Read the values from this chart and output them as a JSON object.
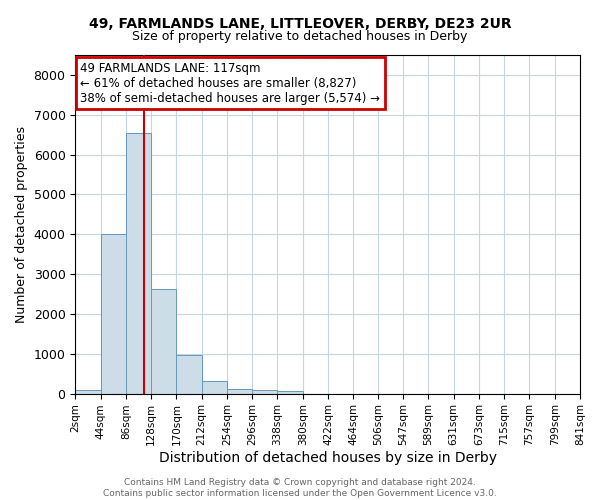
{
  "title_line1": "49, FARMLANDS LANE, LITTLEOVER, DERBY, DE23 2UR",
  "title_line2": "Size of property relative to detached houses in Derby",
  "xlabel": "Distribution of detached houses by size in Derby",
  "ylabel": "Number of detached properties",
  "footnote": "Contains HM Land Registry data © Crown copyright and database right 2024.\nContains public sector information licensed under the Open Government Licence v3.0.",
  "annotation_title": "49 FARMLANDS LANE: 117sqm",
  "annotation_line2": "← 61% of detached houses are smaller (8,827)",
  "annotation_line3": "38% of semi-detached houses are larger (5,574) →",
  "property_sqm": 117,
  "bar_color": "#ccdde8",
  "bar_edge_color": "#6699bb",
  "vline_color": "#cc0000",
  "annotation_box_edge": "#cc0000",
  "grid_color": "#c5d5e5",
  "background_color": "#ffffff",
  "bins": [
    2,
    44,
    86,
    128,
    170,
    212,
    254,
    296,
    338,
    380,
    422,
    464,
    506,
    547,
    589,
    631,
    673,
    715,
    757,
    799,
    841
  ],
  "bin_labels": [
    "2sqm",
    "44sqm",
    "86sqm",
    "128sqm",
    "170sqm",
    "212sqm",
    "254sqm",
    "296sqm",
    "338sqm",
    "380sqm",
    "422sqm",
    "464sqm",
    "506sqm",
    "547sqm",
    "589sqm",
    "631sqm",
    "673sqm",
    "715sqm",
    "757sqm",
    "799sqm",
    "841sqm"
  ],
  "bar_heights": [
    80,
    4000,
    6550,
    2620,
    960,
    310,
    120,
    90,
    65,
    0,
    0,
    0,
    0,
    0,
    0,
    0,
    0,
    0,
    0,
    0
  ],
  "ylim_max": 8500,
  "yticks": [
    0,
    1000,
    2000,
    3000,
    4000,
    5000,
    6000,
    7000,
    8000
  ],
  "title1_fontsize": 10,
  "title2_fontsize": 9,
  "xlabel_fontsize": 10,
  "ylabel_fontsize": 9,
  "tick_fontsize": 9,
  "xtick_fontsize": 7.5,
  "footnote_fontsize": 6.5,
  "annotation_fontsize": 8.5
}
